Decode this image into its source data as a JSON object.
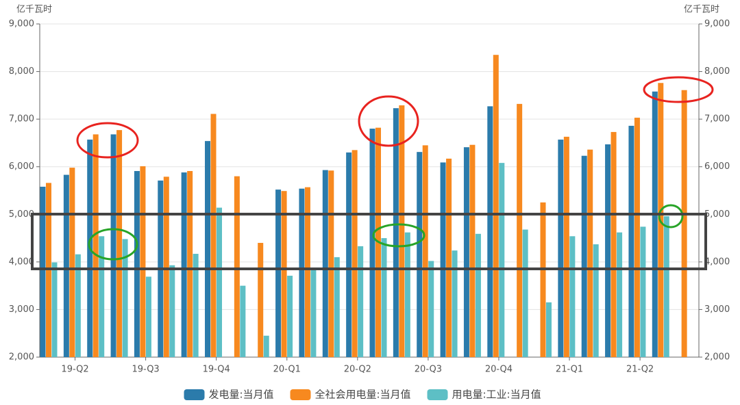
{
  "chart_data": {
    "type": "bar",
    "y_label": "亿千瓦时",
    "y2_label": "亿千瓦时",
    "categories": [
      null,
      "19-Q2",
      null,
      null,
      "19-Q3",
      null,
      null,
      "19-Q4",
      null,
      null,
      "20-Q1",
      null,
      null,
      "20-Q2",
      null,
      null,
      "20-Q3",
      null,
      null,
      "20-Q4",
      null,
      null,
      "21-Q1",
      null,
      null,
      "21-Q2",
      null,
      null
    ],
    "series": [
      {
        "name": "发电量:当月值",
        "color": "#2b7bab",
        "values": [
          5580,
          5830,
          6570,
          6680,
          5910,
          5710,
          5880,
          6540,
          null,
          null,
          5520,
          5540,
          5930,
          6300,
          6800,
          7230,
          6310,
          6090,
          6410,
          7270,
          null,
          null,
          6570,
          6230,
          6470,
          6860,
          7580,
          null
        ]
      },
      {
        "name": "全社会用电量:当月值",
        "color": "#f7891f",
        "values": [
          5660,
          5980,
          6680,
          6770,
          6010,
          5790,
          5910,
          7110,
          5800,
          4400,
          5490,
          5570,
          5920,
          6350,
          6820,
          7290,
          6450,
          6170,
          6460,
          8350,
          7320,
          5250,
          6630,
          6360,
          6730,
          7030,
          7760,
          7610
        ]
      },
      {
        "name": "用电量:工业:当月值",
        "color": "#5dbfc5",
        "values": [
          3990,
          4160,
          4540,
          4480,
          3690,
          3930,
          4170,
          5140,
          3500,
          2450,
          3710,
          3850,
          4100,
          4330,
          4500,
          4620,
          4020,
          4240,
          4590,
          6080,
          4680,
          3150,
          4540,
          4370,
          4620,
          4740,
          4960,
          null
        ]
      }
    ],
    "ylim": [
      2000,
      9000
    ],
    "yticks": [
      {
        "value": 2000,
        "label": "2,000"
      },
      {
        "value": 3000,
        "label": "3,000"
      },
      {
        "value": 4000,
        "label": "4,000"
      },
      {
        "value": 5000,
        "label": "5,000"
      },
      {
        "value": 6000,
        "label": "6,000"
      },
      {
        "value": 7000,
        "label": "7,000"
      },
      {
        "value": 8000,
        "label": "8,000"
      },
      {
        "value": 9000,
        "label": "9,000"
      }
    ],
    "y2lim": [
      2000,
      9000
    ],
    "y2ticks": [
      {
        "value": 2000,
        "label": "2,000"
      },
      {
        "value": 3000,
        "label": "3,000"
      },
      {
        "value": 4000,
        "label": "4,000"
      },
      {
        "value": 5000,
        "label": "5,000"
      },
      {
        "value": 6000,
        "label": "6,000"
      },
      {
        "value": 7000,
        "label": "7,000"
      },
      {
        "value": 8000,
        "label": "8,000"
      },
      {
        "value": 9000,
        "label": "9,000"
      }
    ],
    "grid": true,
    "legend": "bottom"
  }
}
